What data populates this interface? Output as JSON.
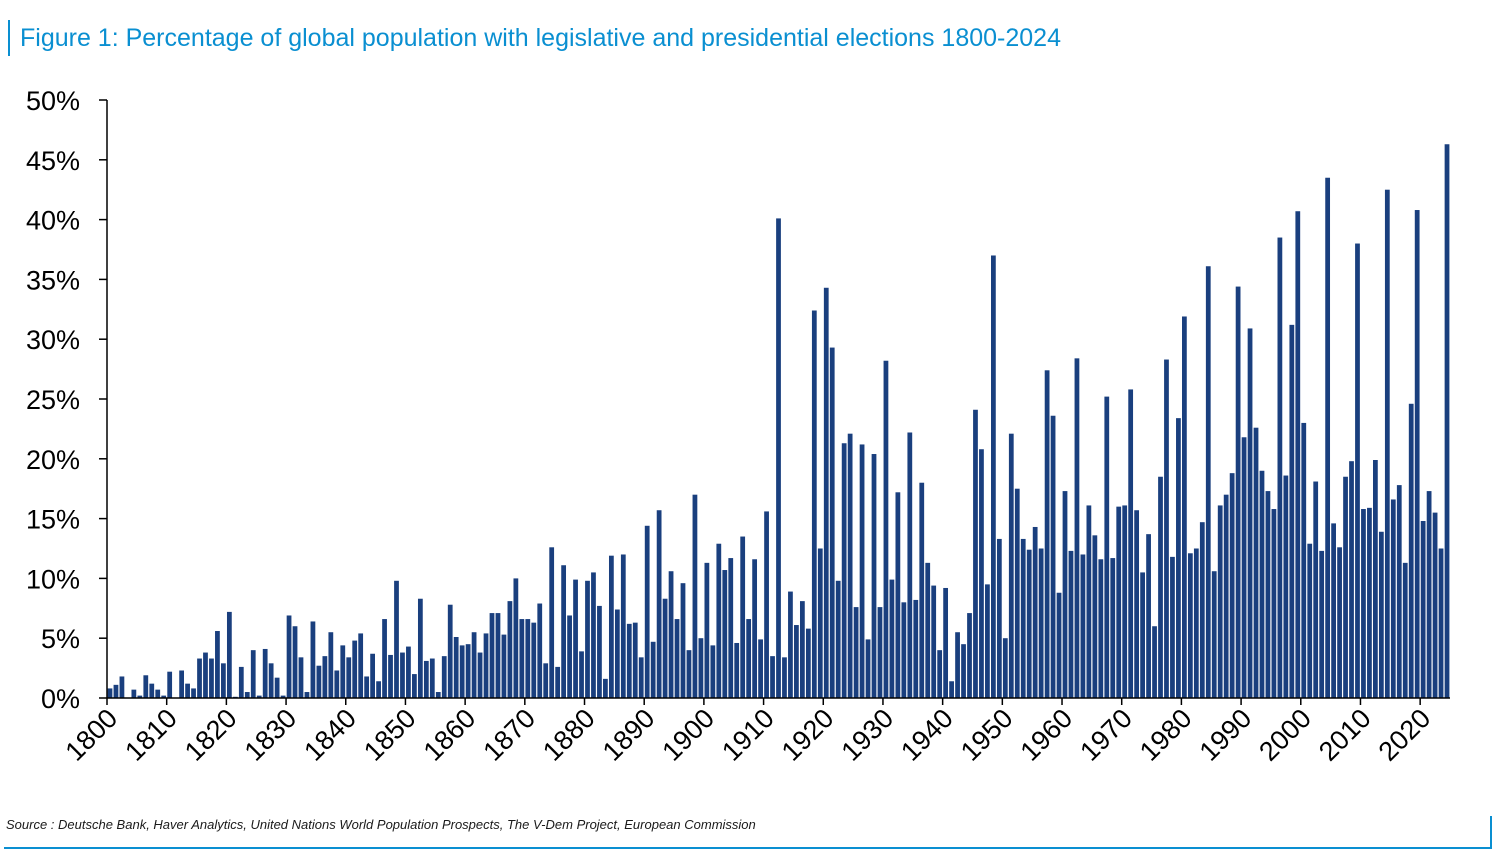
{
  "title": "Figure 1: Percentage of global population with legislative and presidential elections 1800-2024",
  "source": "Source : Deutsche Bank, Haver Analytics, United Nations World Population Prospects, The V-Dem Project, European Commission",
  "colors": {
    "bar": "#1a3f7e",
    "accent": "#0a8fd1",
    "axis": "#000000"
  },
  "chart_data": {
    "type": "bar",
    "title": "Figure 1: Percentage of global population with legislative and presidential elections 1800-2024",
    "xlabel": "",
    "ylabel": "",
    "x_start": 1800,
    "x_end": 2024,
    "ylim": [
      0,
      50
    ],
    "yticks": [
      "0%",
      "5%",
      "10%",
      "15%",
      "20%",
      "25%",
      "30%",
      "35%",
      "40%",
      "45%",
      "50%"
    ],
    "xticks": [
      "1800",
      "1810",
      "1820",
      "1830",
      "1840",
      "1850",
      "1860",
      "1870",
      "1880",
      "1890",
      "1900",
      "1910",
      "1920",
      "1930",
      "1940",
      "1950",
      "1960",
      "1970",
      "1980",
      "1990",
      "2000",
      "2010",
      "2020"
    ],
    "grid": false,
    "values": [
      0.8,
      1.1,
      1.8,
      0,
      0.7,
      0.2,
      1.9,
      1.2,
      0.7,
      0.2,
      2.2,
      0,
      2.3,
      1.2,
      0.8,
      3.3,
      3.8,
      3.3,
      5.6,
      2.9,
      7.2,
      0.1,
      2.6,
      0.5,
      4.0,
      0.2,
      4.1,
      2.9,
      1.7,
      0.2,
      6.9,
      6.0,
      3.4,
      0.5,
      6.4,
      2.7,
      3.5,
      5.5,
      2.3,
      4.4,
      3.4,
      4.8,
      5.4,
      1.8,
      3.7,
      1.4,
      6.6,
      3.6,
      9.8,
      3.8,
      4.3,
      2.0,
      8.3,
      3.1,
      3.3,
      0.5,
      3.5,
      7.8,
      5.1,
      4.4,
      4.5,
      5.5,
      3.8,
      5.4,
      7.1,
      7.1,
      5.3,
      8.1,
      10.0,
      6.6,
      6.6,
      6.3,
      7.9,
      2.9,
      12.6,
      2.6,
      11.1,
      6.9,
      9.9,
      3.9,
      9.8,
      10.5,
      7.7,
      1.6,
      11.9,
      7.4,
      12.0,
      6.2,
      6.3,
      3.4,
      14.4,
      4.7,
      15.7,
      8.3,
      10.6,
      6.6,
      9.6,
      4.0,
      17.0,
      5.0,
      11.3,
      4.4,
      12.9,
      10.7,
      11.7,
      4.6,
      13.5,
      6.6,
      11.6,
      4.9,
      15.6,
      3.5,
      40.1,
      3.4,
      8.9,
      6.1,
      8.1,
      5.8,
      32.4,
      12.5,
      34.3,
      29.3,
      9.8,
      21.3,
      22.1,
      7.6,
      21.2,
      4.9,
      20.4,
      7.6,
      28.2,
      9.9,
      17.2,
      8.0,
      22.2,
      8.2,
      18.0,
      11.3,
      9.4,
      4.0,
      9.2,
      1.4,
      5.5,
      4.5,
      7.1,
      24.1,
      20.8,
      9.5,
      37.0,
      13.3,
      5.0,
      22.1,
      17.5,
      13.3,
      12.4,
      14.3,
      12.5,
      27.4,
      23.6,
      8.8,
      17.3,
      12.3,
      28.4,
      12.0,
      16.1,
      13.6,
      11.6,
      25.2,
      11.7,
      16.0,
      16.1,
      25.8,
      15.7,
      10.5,
      13.7,
      6.0,
      18.5,
      28.3,
      11.8,
      23.4,
      31.9,
      12.1,
      12.5,
      14.7,
      36.1,
      10.6,
      16.1,
      17.0,
      18.8,
      34.4,
      21.8,
      30.9,
      22.6,
      19.0,
      17.3,
      15.8,
      38.5,
      18.6,
      31.2,
      40.7,
      23.0,
      12.9,
      18.1,
      12.3,
      43.5,
      14.6,
      12.6,
      18.5,
      19.8,
      38.0,
      15.8,
      15.9,
      19.9,
      13.9,
      42.5,
      16.6,
      17.8,
      11.3,
      24.6,
      40.8,
      14.8,
      17.3,
      15.5,
      12.5,
      46.3
    ]
  }
}
